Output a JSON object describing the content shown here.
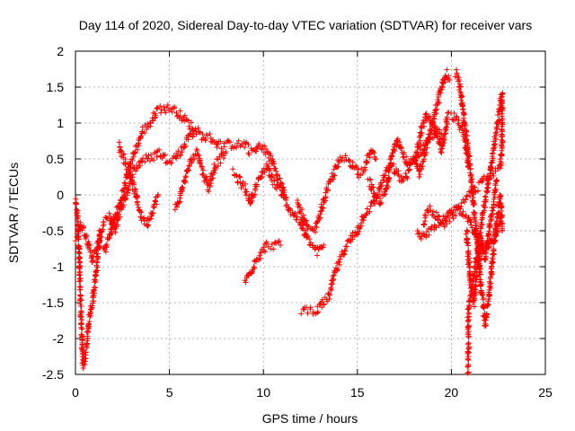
{
  "chart_data": {
    "type": "scatter",
    "title": "Day 114 of 2020, Sidereal Day-to-day VTEC variation (SDTVAR) for receiver vars",
    "xlabel": "GPS time / hours",
    "ylabel": "SDTVAR / TECUs",
    "xlim": [
      0,
      25
    ],
    "ylim": [
      -2.5,
      2
    ],
    "xticks": [
      "0",
      "5",
      "10",
      "15",
      "20",
      "25"
    ],
    "yticks": [
      "-2.5",
      "-2",
      "-1.5",
      "-1",
      "-0.5",
      "0",
      "0.5",
      "1",
      "1.5",
      "2"
    ],
    "grid": true,
    "marker": "+",
    "series": [
      {
        "name": "SDTVAR",
        "color": "#ff0000",
        "tracks": [
          [
            [
              0.0,
              -0.1
            ],
            [
              0.1,
              -0.3
            ],
            [
              0.2,
              -0.8
            ],
            [
              0.25,
              -1.3
            ],
            [
              0.3,
              -1.7
            ],
            [
              0.35,
              -2.0
            ],
            [
              0.4,
              -2.4
            ],
            [
              0.5,
              -2.3
            ],
            [
              0.6,
              -2.1
            ],
            [
              0.7,
              -1.8
            ],
            [
              0.8,
              -1.6
            ],
            [
              0.9,
              -1.5
            ],
            [
              1.0,
              -1.3
            ],
            [
              1.1,
              -1.1
            ],
            [
              1.2,
              -0.8
            ],
            [
              1.3,
              -0.5
            ]
          ],
          [
            [
              0.0,
              -0.6
            ],
            [
              0.3,
              -0.4
            ],
            [
              0.6,
              -0.6
            ],
            [
              0.9,
              -0.9
            ],
            [
              1.2,
              -0.7
            ],
            [
              1.5,
              -0.4
            ],
            [
              1.8,
              -0.3
            ],
            [
              2.1,
              -0.5
            ],
            [
              2.4,
              -0.2
            ],
            [
              2.7,
              0.0
            ],
            [
              3.0,
              0.3
            ],
            [
              3.3,
              0.4
            ],
            [
              3.6,
              0.5
            ],
            [
              4.0,
              0.5
            ],
            [
              4.4,
              0.6
            ],
            [
              4.8,
              0.5
            ],
            [
              5.2,
              0.5
            ],
            [
              5.6,
              0.6
            ],
            [
              6.0,
              0.8
            ],
            [
              6.4,
              0.9
            ],
            [
              6.8,
              0.8
            ],
            [
              7.2,
              0.8
            ],
            [
              7.6,
              0.7
            ],
            [
              8.0,
              0.7
            ],
            [
              8.4,
              0.7
            ],
            [
              8.8,
              0.7
            ],
            [
              9.2,
              0.7
            ]
          ],
          [
            [
              1.5,
              -0.8
            ],
            [
              1.8,
              -0.6
            ],
            [
              2.1,
              -0.3
            ],
            [
              2.4,
              -0.1
            ],
            [
              2.7,
              0.2
            ],
            [
              3.0,
              0.5
            ],
            [
              3.3,
              0.7
            ],
            [
              3.6,
              0.9
            ],
            [
              4.0,
              1.0
            ],
            [
              4.4,
              1.2
            ],
            [
              4.8,
              1.2
            ],
            [
              5.2,
              1.2
            ],
            [
              5.6,
              1.1
            ],
            [
              6.0,
              1.0
            ],
            [
              6.3,
              0.9
            ]
          ],
          [
            [
              2.3,
              0.7
            ],
            [
              2.6,
              0.5
            ],
            [
              2.9,
              0.3
            ],
            [
              3.2,
              0.0
            ],
            [
              3.5,
              -0.3
            ],
            [
              3.8,
              -0.4
            ],
            [
              4.1,
              -0.2
            ],
            [
              4.4,
              0.0
            ]
          ],
          [
            [
              5.3,
              -0.2
            ],
            [
              5.6,
              0.0
            ],
            [
              5.9,
              0.3
            ],
            [
              6.2,
              0.5
            ],
            [
              6.5,
              0.6
            ],
            [
              6.8,
              0.3
            ],
            [
              7.1,
              0.1
            ],
            [
              7.4,
              0.4
            ],
            [
              7.7,
              0.5
            ],
            [
              8.0,
              0.6
            ]
          ],
          [
            [
              8.4,
              0.3
            ],
            [
              8.7,
              0.2
            ],
            [
              9.0,
              0.1
            ],
            [
              9.3,
              -0.1
            ],
            [
              9.6,
              0.1
            ],
            [
              9.9,
              0.3
            ],
            [
              10.2,
              0.4
            ],
            [
              10.5,
              0.2
            ],
            [
              10.8,
              0.1
            ],
            [
              11.1,
              0.0
            ]
          ],
          [
            [
              9.2,
              0.6
            ],
            [
              9.5,
              0.6
            ],
            [
              9.8,
              0.7
            ],
            [
              10.1,
              0.6
            ],
            [
              10.4,
              0.5
            ],
            [
              10.7,
              0.3
            ],
            [
              11.0,
              0.1
            ],
            [
              11.2,
              -0.1
            ],
            [
              11.4,
              -0.2
            ],
            [
              11.7,
              -0.3
            ],
            [
              12.0,
              -0.4
            ],
            [
              12.3,
              -0.6
            ],
            [
              12.6,
              -0.7
            ],
            [
              12.9,
              -0.8
            ],
            [
              13.2,
              -0.7
            ]
          ],
          [
            [
              9.0,
              -1.2
            ],
            [
              9.3,
              -1.1
            ],
            [
              9.6,
              -0.9
            ],
            [
              9.9,
              -0.8
            ],
            [
              10.2,
              -0.7
            ],
            [
              10.5,
              -0.7
            ],
            [
              10.9,
              -0.7
            ]
          ],
          [
            [
              11.8,
              -0.1
            ],
            [
              12.1,
              -0.3
            ],
            [
              12.4,
              -0.5
            ],
            [
              12.7,
              -0.5
            ],
            [
              13.0,
              -0.3
            ],
            [
              13.3,
              0.0
            ],
            [
              13.6,
              0.2
            ],
            [
              13.9,
              0.4
            ],
            [
              14.2,
              0.5
            ],
            [
              14.5,
              0.5
            ],
            [
              14.8,
              0.4
            ],
            [
              15.1,
              0.3
            ],
            [
              15.4,
              0.4
            ],
            [
              15.7,
              0.6
            ],
            [
              16.0,
              0.5
            ]
          ],
          [
            [
              12.0,
              -1.6
            ],
            [
              12.3,
              -1.6
            ],
            [
              12.6,
              -1.6
            ],
            [
              12.9,
              -1.6
            ],
            [
              13.2,
              -1.5
            ],
            [
              13.5,
              -1.4
            ],
            [
              13.8,
              -1.1
            ],
            [
              14.1,
              -0.9
            ],
            [
              14.4,
              -0.7
            ],
            [
              14.7,
              -0.6
            ],
            [
              15.0,
              -0.5
            ],
            [
              15.3,
              -0.3
            ],
            [
              15.6,
              -0.2
            ],
            [
              15.9,
              -0.1
            ],
            [
              16.2,
              0.1
            ],
            [
              16.5,
              0.3
            ],
            [
              16.8,
              0.4
            ],
            [
              17.1,
              0.3
            ],
            [
              17.4,
              0.2
            ],
            [
              17.7,
              0.3
            ],
            [
              18.0,
              0.5
            ],
            [
              18.3,
              0.6
            ],
            [
              18.6,
              0.7
            ],
            [
              18.9,
              0.8
            ],
            [
              19.2,
              0.9
            ],
            [
              19.5,
              0.8
            ]
          ],
          [
            [
              15.6,
              0.2
            ],
            [
              15.9,
              0.0
            ],
            [
              16.2,
              -0.1
            ],
            [
              16.5,
              0.0
            ],
            [
              16.8,
              0.5
            ],
            [
              17.1,
              0.8
            ],
            [
              17.4,
              0.6
            ],
            [
              17.7,
              0.4
            ],
            [
              18.0,
              0.5
            ],
            [
              18.3,
              0.3
            ],
            [
              18.6,
              0.6
            ],
            [
              18.9,
              0.9
            ],
            [
              19.2,
              1.2
            ],
            [
              19.5,
              1.5
            ],
            [
              19.7,
              1.7
            ],
            [
              19.9,
              1.6
            ]
          ],
          [
            [
              18.1,
              0.5
            ],
            [
              18.4,
              0.9
            ],
            [
              18.7,
              1.1
            ],
            [
              19.0,
              1.0
            ],
            [
              19.3,
              0.8
            ],
            [
              19.5,
              0.6
            ],
            [
              19.8,
              1.1
            ],
            [
              20.1,
              1.1
            ],
            [
              20.4,
              1.0
            ],
            [
              20.7,
              0.8
            ],
            [
              20.9,
              0.4
            ]
          ],
          [
            [
              18.5,
              -0.4
            ],
            [
              18.8,
              -0.2
            ],
            [
              19.2,
              -0.3
            ],
            [
              19.6,
              -0.4
            ],
            [
              20.0,
              -0.3
            ],
            [
              20.4,
              -0.2
            ],
            [
              20.8,
              -0.3
            ],
            [
              21.2,
              -0.5
            ],
            [
              21.6,
              -0.8
            ],
            [
              22.0,
              -0.7
            ],
            [
              22.4,
              -0.5
            ],
            [
              22.7,
              -0.3
            ]
          ],
          [
            [
              20.2,
              1.7
            ],
            [
              20.4,
              1.6
            ],
            [
              20.6,
              1.2
            ],
            [
              20.8,
              0.8
            ],
            [
              21.0,
              0.4
            ],
            [
              21.2,
              -0.2
            ],
            [
              21.4,
              -0.7
            ],
            [
              21.6,
              -1.3
            ],
            [
              21.8,
              -1.8
            ],
            [
              22.0,
              -1.4
            ],
            [
              22.2,
              -0.9
            ],
            [
              22.4,
              -0.4
            ],
            [
              22.6,
              0.0
            ],
            [
              22.7,
              -0.5
            ]
          ],
          [
            [
              20.8,
              -0.5
            ],
            [
              21.0,
              -1.2
            ],
            [
              21.2,
              -1.5
            ],
            [
              21.4,
              -1.0
            ],
            [
              21.6,
              -0.6
            ],
            [
              21.8,
              -0.9
            ],
            [
              22.0,
              -0.5
            ],
            [
              22.2,
              -0.2
            ],
            [
              22.4,
              0.2
            ]
          ],
          [
            [
              20.9,
              -2.45
            ],
            [
              20.9,
              -1.9
            ],
            [
              20.9,
              -1.6
            ],
            [
              22.7,
              1.4
            ],
            [
              22.7,
              1.2
            ],
            [
              22.7,
              1.0
            ],
            [
              22.7,
              0.7
            ],
            [
              22.6,
              0.4
            ],
            [
              18.5,
              -0.6
            ],
            [
              18.2,
              -0.5
            ]
          ]
        ]
      }
    ]
  }
}
